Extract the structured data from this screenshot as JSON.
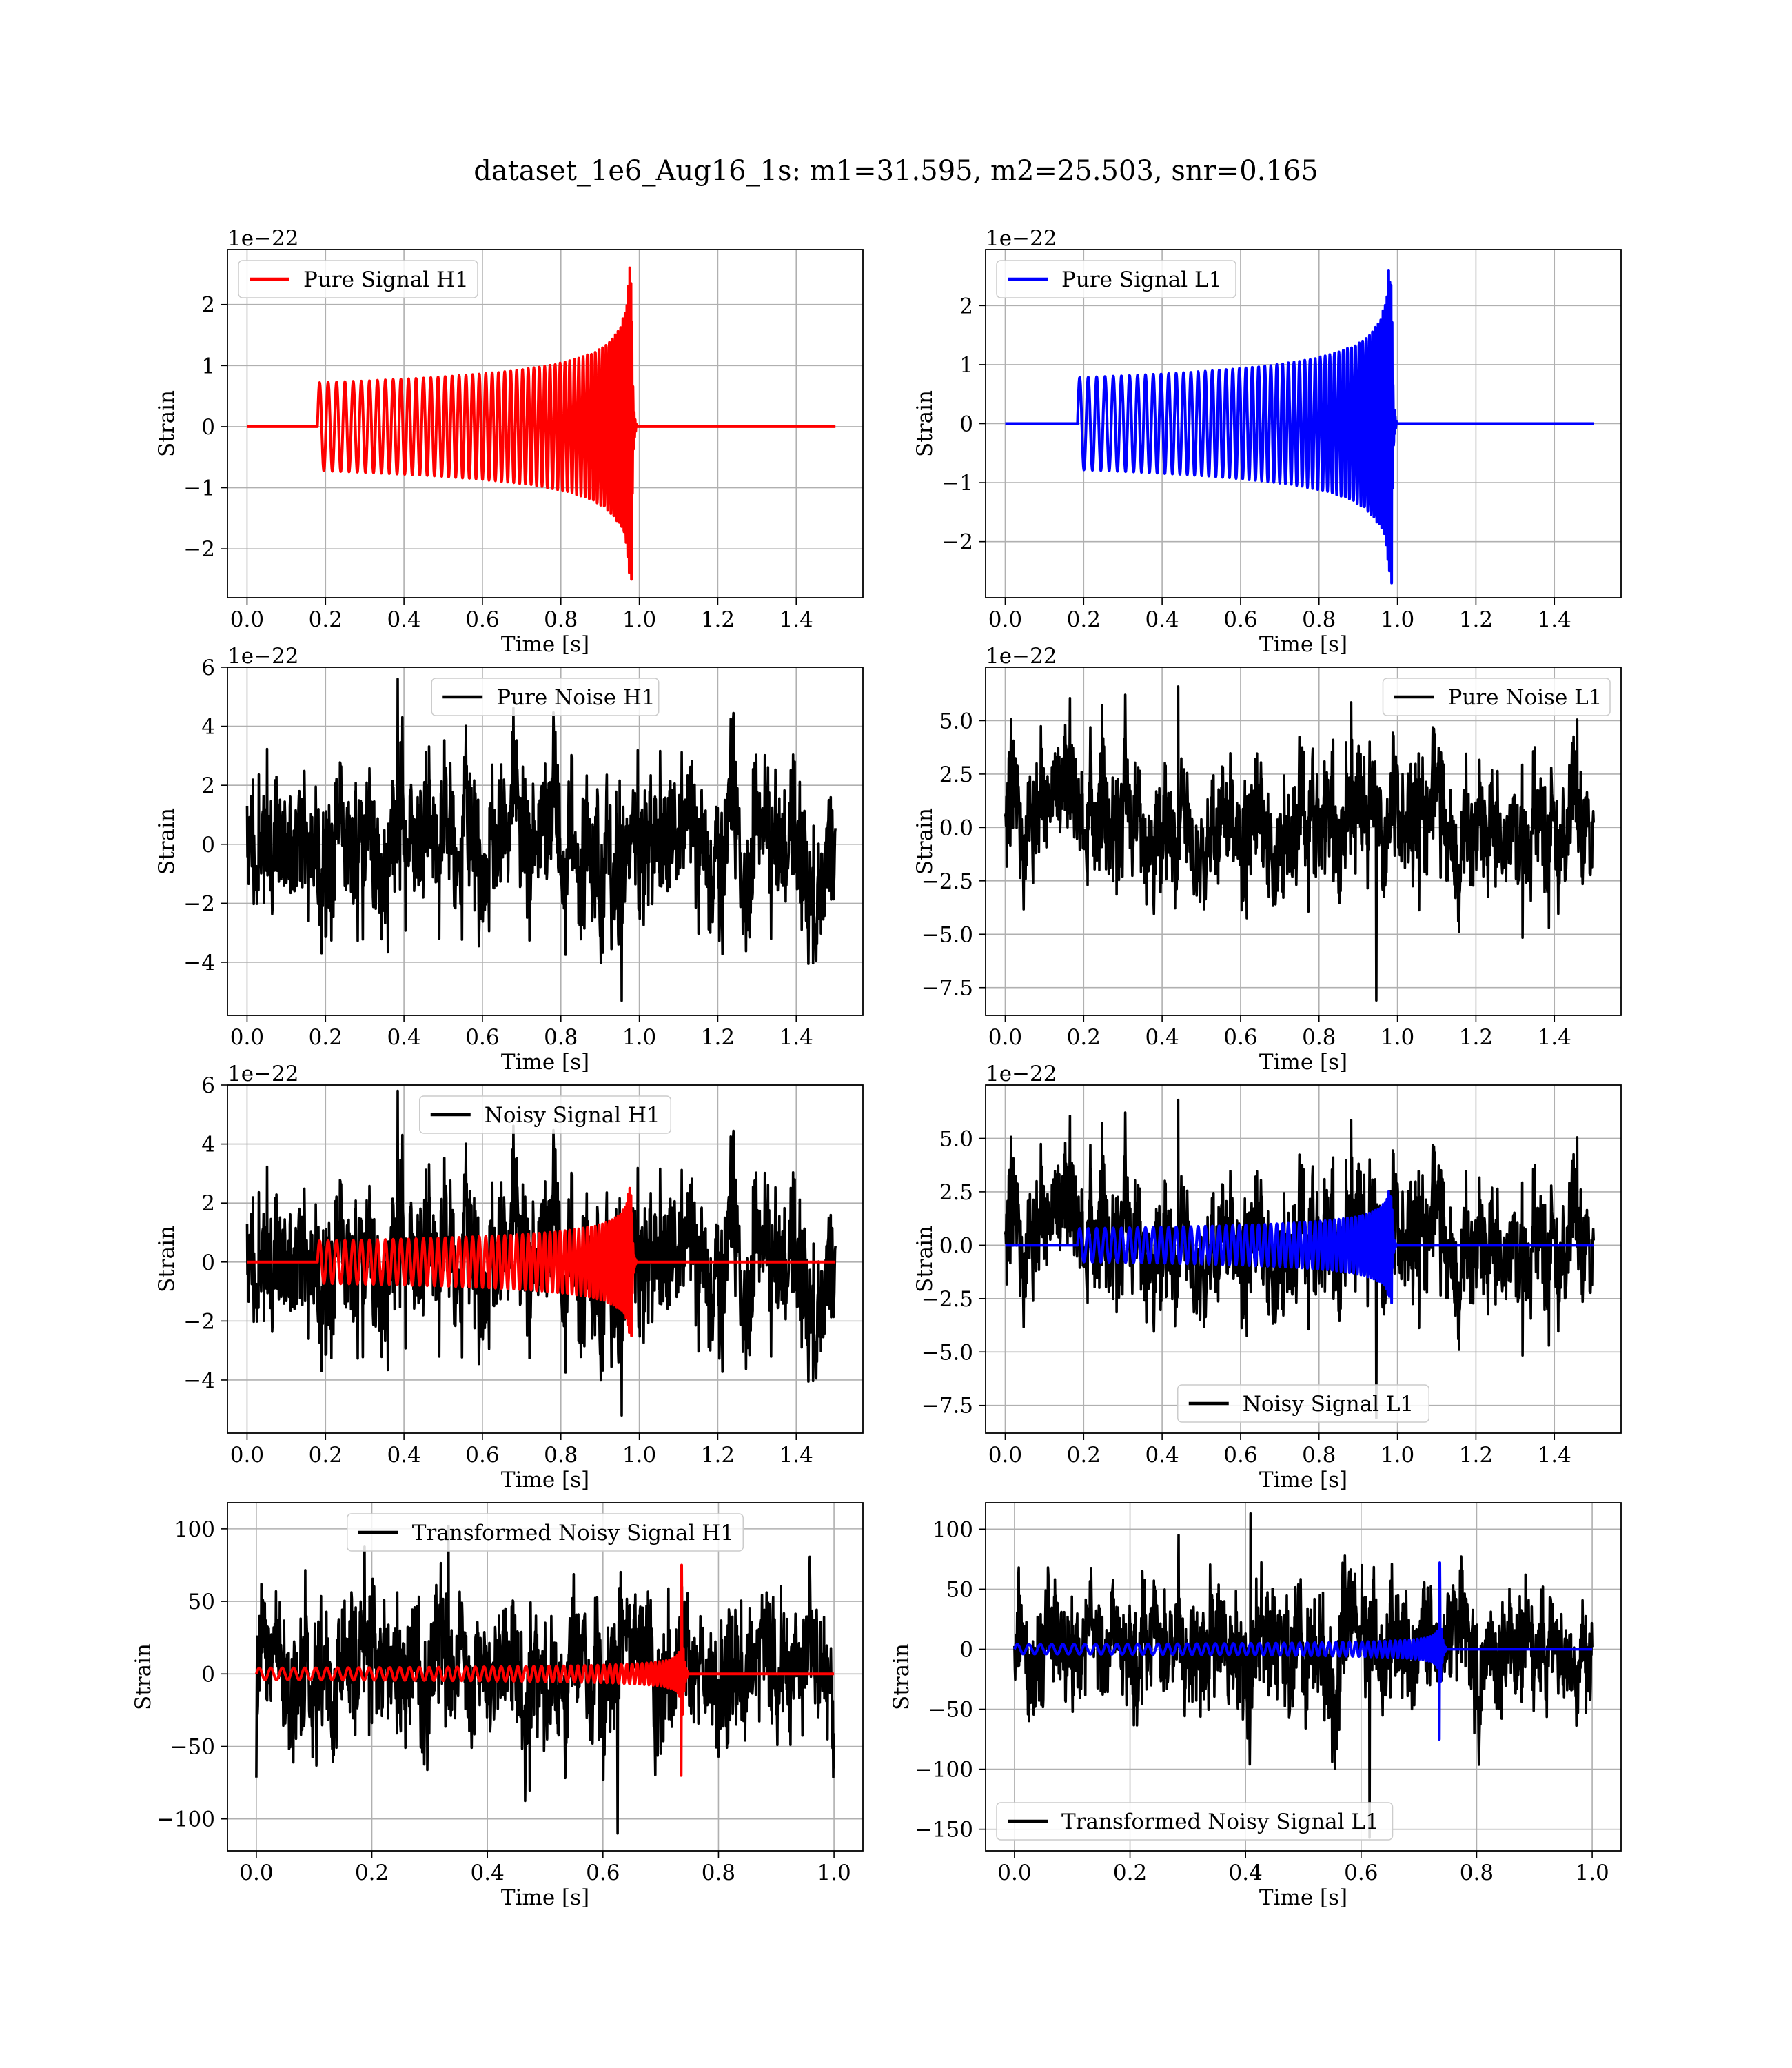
{
  "figure": {
    "title": "dataset_1e6_Aug16_1s: m1=31.595, m2=25.503, snr=0.165"
  },
  "colors": {
    "h1_signal": "#ff0000",
    "l1_signal": "#0000ff",
    "noise": "#000000"
  },
  "chart_data": [
    {
      "id": "pure-signal-h1",
      "type": "line",
      "xlabel": "Time [s]",
      "ylabel": "Strain",
      "offset_text": "1e−22",
      "xlim": [
        -0.05,
        1.57
      ],
      "ylim": [
        -2.8,
        2.9
      ],
      "xticks": [
        "0.0",
        "0.2",
        "0.4",
        "0.6",
        "0.8",
        "1.0",
        "1.2",
        "1.4"
      ],
      "yticks": [
        "−2",
        "−1",
        "0",
        "1",
        "2"
      ],
      "legend": {
        "loc": "upper left"
      },
      "series": [
        {
          "name": "Pure Signal H1",
          "color": "#ff0000",
          "kind": "chirp",
          "t0": 0.18,
          "tc": 0.98,
          "t_end": 1.5,
          "amp0": 0.72,
          "peak": 2.6,
          "neg_peak": -2.5
        }
      ]
    },
    {
      "id": "pure-signal-l1",
      "type": "line",
      "xlabel": "Time [s]",
      "ylabel": "Strain",
      "offset_text": "1e−22",
      "xlim": [
        -0.05,
        1.57
      ],
      "ylim": [
        -2.95,
        2.95
      ],
      "xticks": [
        "0.0",
        "0.2",
        "0.4",
        "0.6",
        "0.8",
        "1.0",
        "1.2",
        "1.4"
      ],
      "yticks": [
        "−2",
        "−1",
        "0",
        "1",
        "2"
      ],
      "legend": {
        "loc": "upper left"
      },
      "series": [
        {
          "name": "Pure Signal L1",
          "color": "#0000ff",
          "kind": "chirp",
          "t0": 0.185,
          "tc": 0.985,
          "t_end": 1.5,
          "amp0": 0.78,
          "peak": 2.6,
          "neg_peak": -2.7
        }
      ]
    },
    {
      "id": "pure-noise-h1",
      "type": "line",
      "xlabel": "Time [s]",
      "ylabel": "Strain",
      "offset_text": "1e−22",
      "xlim": [
        -0.05,
        1.57
      ],
      "ylim": [
        -5.8,
        6.0
      ],
      "xticks": [
        "0.0",
        "0.2",
        "0.4",
        "0.6",
        "0.8",
        "1.0",
        "1.2",
        "1.4"
      ],
      "yticks": [
        "−4",
        "−2",
        "0",
        "2",
        "4",
        "6"
      ],
      "legend": {
        "loc": "upper center"
      },
      "series": [
        {
          "name": "Pure Noise H1",
          "color": "#000000",
          "kind": "noise",
          "t_end": 1.5,
          "sigma": 1.45,
          "seed": 11,
          "max": 5.6,
          "min": -5.3
        }
      ]
    },
    {
      "id": "pure-noise-l1",
      "type": "line",
      "xlabel": "Time [s]",
      "ylabel": "Strain",
      "offset_text": "1e−22",
      "xlim": [
        -0.05,
        1.57
      ],
      "ylim": [
        -8.8,
        7.5
      ],
      "xticks": [
        "0.0",
        "0.2",
        "0.4",
        "0.6",
        "0.8",
        "1.0",
        "1.2",
        "1.4"
      ],
      "yticks": [
        "−7.5",
        "−5.0",
        "−2.5",
        "0.0",
        "2.5",
        "5.0"
      ],
      "legend": {
        "loc": "upper right"
      },
      "series": [
        {
          "name": "Pure Noise L1",
          "color": "#000000",
          "kind": "noise",
          "t_end": 1.5,
          "sigma": 1.7,
          "seed": 29,
          "max": 6.6,
          "min": -8.1
        }
      ]
    },
    {
      "id": "noisy-signal-h1",
      "type": "line",
      "xlabel": "Time [s]",
      "ylabel": "Strain",
      "offset_text": "1e−22",
      "xlim": [
        -0.05,
        1.57
      ],
      "ylim": [
        -5.8,
        6.0
      ],
      "xticks": [
        "0.0",
        "0.2",
        "0.4",
        "0.6",
        "0.8",
        "1.0",
        "1.2",
        "1.4"
      ],
      "yticks": [
        "−4",
        "−2",
        "0",
        "2",
        "4",
        "6"
      ],
      "legend": {
        "loc": "upper center"
      },
      "series": [
        {
          "name": "Noisy Signal H1",
          "color": "#000000",
          "kind": "noise",
          "t_end": 1.5,
          "sigma": 1.45,
          "seed": 11,
          "max": 5.8,
          "min": -5.2
        },
        {
          "name": "",
          "color": "#ff0000",
          "kind": "chirp",
          "t0": 0.18,
          "tc": 0.98,
          "t_end": 1.5,
          "amp0": 0.72,
          "peak": 2.5,
          "neg_peak": -2.5
        }
      ]
    },
    {
      "id": "noisy-signal-l1",
      "type": "line",
      "xlabel": "Time [s]",
      "ylabel": "Strain",
      "offset_text": "1e−22",
      "xlim": [
        -0.05,
        1.57
      ],
      "ylim": [
        -8.8,
        7.5
      ],
      "xticks": [
        "0.0",
        "0.2",
        "0.4",
        "0.6",
        "0.8",
        "1.0",
        "1.2",
        "1.4"
      ],
      "yticks": [
        "−7.5",
        "−5.0",
        "−2.5",
        "0.0",
        "2.5",
        "5.0"
      ],
      "legend": {
        "loc": "lower center"
      },
      "series": [
        {
          "name": "Noisy Signal L1",
          "color": "#000000",
          "kind": "noise",
          "t_end": 1.5,
          "sigma": 1.7,
          "seed": 29,
          "max": 6.8,
          "min": -8.1
        },
        {
          "name": "",
          "color": "#0000ff",
          "kind": "chirp",
          "t0": 0.185,
          "tc": 0.985,
          "t_end": 1.5,
          "amp0": 0.78,
          "peak": 2.5,
          "neg_peak": -2.7
        }
      ]
    },
    {
      "id": "transformed-noisy-signal-h1",
      "type": "line",
      "xlabel": "Time [s]",
      "ylabel": "Strain",
      "offset_text": "",
      "xlim": [
        -0.05,
        1.05
      ],
      "ylim": [
        -122,
        118
      ],
      "xticks": [
        "0.0",
        "0.2",
        "0.4",
        "0.6",
        "0.8",
        "1.0"
      ],
      "yticks": [
        "−100",
        "−50",
        "0",
        "50",
        "100"
      ],
      "legend": {
        "loc": "upper center"
      },
      "series": [
        {
          "name": "Transformed Noisy Signal H1",
          "color": "#000000",
          "kind": "noise",
          "t_end": 1.0,
          "sigma": 26,
          "seed": 47,
          "max": 102,
          "min": -110
        },
        {
          "name": "",
          "color": "#ff0000",
          "kind": "chirp",
          "t0": 0.0,
          "tc": 0.735,
          "t_end": 1.0,
          "amp0": 4,
          "peak": 75,
          "neg_peak": -70
        }
      ]
    },
    {
      "id": "transformed-noisy-signal-l1",
      "type": "line",
      "xlabel": "Time [s]",
      "ylabel": "Strain",
      "offset_text": "",
      "xlim": [
        -0.05,
        1.05
      ],
      "ylim": [
        -168,
        122
      ],
      "xticks": [
        "0.0",
        "0.2",
        "0.4",
        "0.6",
        "0.8",
        "1.0"
      ],
      "yticks": [
        "−150",
        "−100",
        "−50",
        "0",
        "50",
        "100"
      ],
      "legend": {
        "loc": "lower left"
      },
      "series": [
        {
          "name": "Transformed Noisy Signal L1",
          "color": "#000000",
          "kind": "noise",
          "t_end": 1.0,
          "sigma": 28,
          "seed": 83,
          "max": 113,
          "min": -157
        },
        {
          "name": "",
          "color": "#0000ff",
          "kind": "chirp",
          "t0": 0.0,
          "tc": 0.735,
          "t_end": 1.0,
          "amp0": 4,
          "peak": 72,
          "neg_peak": -75
        }
      ]
    }
  ]
}
